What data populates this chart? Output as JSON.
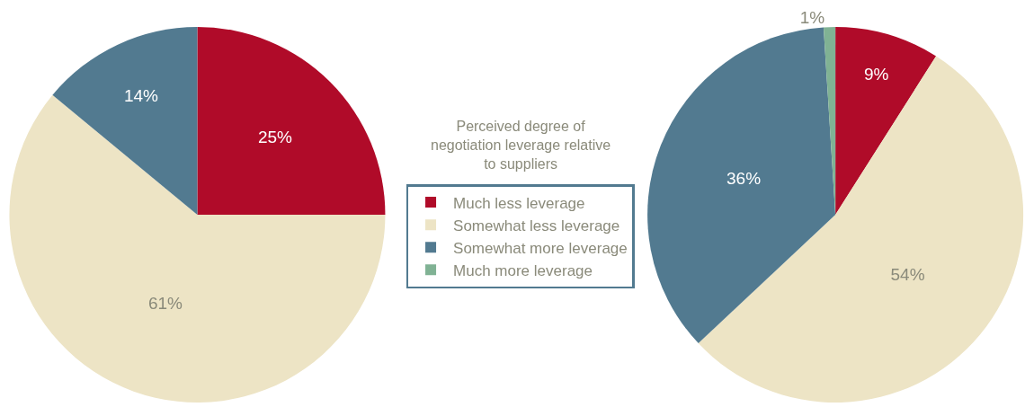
{
  "chart_data": {
    "type": "pie",
    "categories": [
      "Much less leverage",
      "Somewhat less leverage",
      "Somewhat more leverage",
      "Much more leverage"
    ],
    "colors": [
      "#b00b29",
      "#ede4c5",
      "#527a90",
      "#80b294"
    ],
    "series": [
      {
        "values": [
          25,
          61,
          14,
          null
        ],
        "value_labels": [
          "25%",
          "61%",
          "14%",
          null
        ]
      },
      {
        "values": [
          9,
          54,
          36,
          1
        ],
        "value_labels": [
          "9%",
          "54%",
          "36%",
          "1%"
        ]
      }
    ],
    "legend_title": "Perceived degree of negotiation leverage relative to suppliers",
    "legend": "center"
  }
}
